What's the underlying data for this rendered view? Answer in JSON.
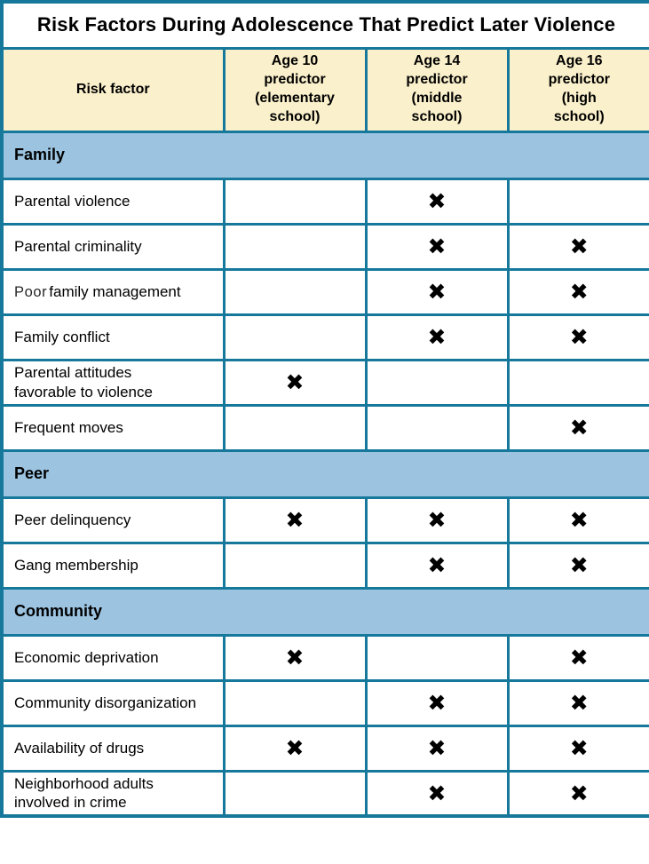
{
  "title": "Risk Factors During Adolescence That Predict Later Violence",
  "colors": {
    "border_teal": "#16799B",
    "header_cream": "#FAF0CB",
    "section_blue": "#9CC3E0",
    "text_black": "#000000",
    "background_white": "#FFFFFF"
  },
  "mark_glyph": "✖",
  "header": {
    "risk_factor": "Risk factor",
    "age10": "Age 10\npredictor\n(elementary\nschool)",
    "age14": "Age 14\npredictor\n(middle\nschool)",
    "age16": "Age 16\npredictor\n(high\nschool)"
  },
  "sections": [
    {
      "title": "Family",
      "rows": [
        {
          "label": "Parental violence",
          "marks": [
            "",
            "✖",
            ""
          ]
        },
        {
          "label": "Parental criminality",
          "marks": [
            "",
            "✖",
            "✖"
          ]
        },
        {
          "label": "Poor family management",
          "label_prefix": "Poor",
          "label_rest": "family management",
          "marks": [
            "",
            "✖",
            "✖"
          ]
        },
        {
          "label": "Family conflict",
          "marks": [
            "",
            "✖",
            "✖"
          ]
        },
        {
          "label": "Parental attitudes\nfavorable to violence",
          "marks": [
            "✖",
            "",
            ""
          ]
        },
        {
          "label": "Frequent moves",
          "marks": [
            "",
            "",
            "✖"
          ]
        }
      ]
    },
    {
      "title": "Peer",
      "rows": [
        {
          "label": "Peer delinquency",
          "marks": [
            "✖",
            "✖",
            "✖"
          ]
        },
        {
          "label": "Gang membership",
          "marks": [
            "",
            "✖",
            "✖"
          ]
        }
      ]
    },
    {
      "title": "Community",
      "rows": [
        {
          "label": "Economic deprivation",
          "marks": [
            "✖",
            "",
            "✖"
          ]
        },
        {
          "label": "Community disorganization",
          "marks": [
            "",
            "✖",
            "✖"
          ]
        },
        {
          "label": "Availability of drugs",
          "marks": [
            "✖",
            "✖",
            "✖"
          ]
        },
        {
          "label": "Neighborhood adults\ninvolved in crime",
          "marks": [
            "",
            "✖",
            "✖"
          ]
        }
      ]
    }
  ],
  "chart_data": {
    "type": "table",
    "title": "Risk Factors During Adolescence That Predict Later Violence",
    "columns": [
      "Risk factor",
      "Age 10 predictor (elementary school)",
      "Age 14 predictor (middle school)",
      "Age 16 predictor (high school)"
    ],
    "mark_glyph": "✖",
    "rows": [
      {
        "section": "Family",
        "risk_factor": "Parental violence",
        "age_10_predictor": false,
        "age_14_predictor": true,
        "age_16_predictor": false
      },
      {
        "section": "Family",
        "risk_factor": "Parental criminality",
        "age_10_predictor": false,
        "age_14_predictor": true,
        "age_16_predictor": true
      },
      {
        "section": "Family",
        "risk_factor": "Poor family management",
        "age_10_predictor": false,
        "age_14_predictor": true,
        "age_16_predictor": true
      },
      {
        "section": "Family",
        "risk_factor": "Family conflict",
        "age_10_predictor": false,
        "age_14_predictor": true,
        "age_16_predictor": true
      },
      {
        "section": "Family",
        "risk_factor": "Parental attitudes favorable to violence",
        "age_10_predictor": true,
        "age_14_predictor": false,
        "age_16_predictor": false
      },
      {
        "section": "Family",
        "risk_factor": "Frequent moves",
        "age_10_predictor": false,
        "age_14_predictor": false,
        "age_16_predictor": true
      },
      {
        "section": "Peer",
        "risk_factor": "Peer delinquency",
        "age_10_predictor": true,
        "age_14_predictor": true,
        "age_16_predictor": true
      },
      {
        "section": "Peer",
        "risk_factor": "Gang membership",
        "age_10_predictor": false,
        "age_14_predictor": true,
        "age_16_predictor": true
      },
      {
        "section": "Community",
        "risk_factor": "Economic deprivation",
        "age_10_predictor": true,
        "age_14_predictor": false,
        "age_16_predictor": true
      },
      {
        "section": "Community",
        "risk_factor": "Community disorganization",
        "age_10_predictor": false,
        "age_14_predictor": true,
        "age_16_predictor": true
      },
      {
        "section": "Community",
        "risk_factor": "Availability of drugs",
        "age_10_predictor": true,
        "age_14_predictor": true,
        "age_16_predictor": true
      },
      {
        "section": "Community",
        "risk_factor": "Neighborhood adults involved in crime",
        "age_10_predictor": false,
        "age_14_predictor": true,
        "age_16_predictor": true
      }
    ]
  }
}
